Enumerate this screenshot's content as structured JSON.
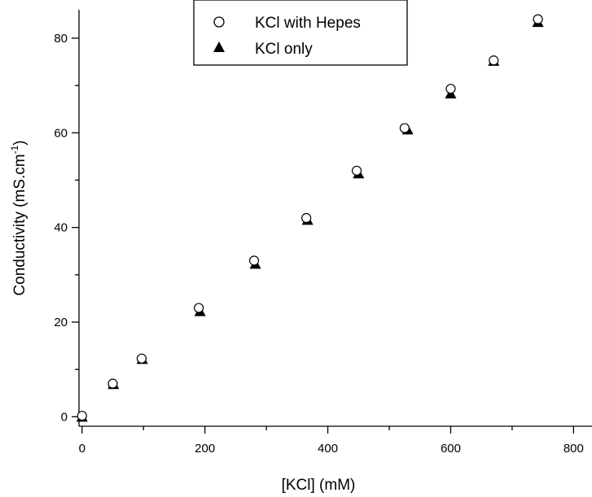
{
  "chart_data": {
    "type": "scatter",
    "xlabel": "[KCl]  (mM)",
    "ylabel_main": "Conductivity (mS.cm",
    "ylabel_sup": "-1",
    "ylabel_close": ")",
    "xlim": [
      -5,
      830
    ],
    "ylim": [
      -2,
      86
    ],
    "xticks": [
      0,
      200,
      400,
      600,
      800
    ],
    "xticks_minor": [
      100,
      300,
      500,
      700
    ],
    "yticks": [
      0,
      20,
      40,
      60,
      80
    ],
    "yticks_minor": [
      10,
      30,
      50,
      70
    ],
    "legend_position": "top-center",
    "grid": false,
    "series": [
      {
        "name": "KCl with Hepes",
        "marker": "open-circle",
        "x": [
          0,
          50,
          97,
          190,
          280,
          365,
          447,
          525,
          600,
          670,
          742
        ],
        "y": [
          0.2,
          7.0,
          12.3,
          23.0,
          33.0,
          42.0,
          52.0,
          61.0,
          69.3,
          75.3,
          84.0
        ]
      },
      {
        "name": "KCl only",
        "marker": "filled-triangle",
        "x": [
          0,
          51,
          98,
          192,
          282,
          367,
          450,
          530,
          600,
          670,
          742
        ],
        "y": [
          0.0,
          6.9,
          12.2,
          22.3,
          32.3,
          41.6,
          51.4,
          60.7,
          68.3,
          75.2,
          83.4
        ]
      }
    ]
  }
}
